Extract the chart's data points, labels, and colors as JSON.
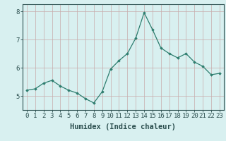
{
  "x": [
    0,
    1,
    2,
    3,
    4,
    5,
    6,
    7,
    8,
    9,
    10,
    11,
    12,
    13,
    14,
    15,
    16,
    17,
    18,
    19,
    20,
    21,
    22,
    23
  ],
  "y": [
    5.2,
    5.25,
    5.45,
    5.55,
    5.35,
    5.2,
    5.1,
    4.9,
    4.75,
    5.15,
    5.95,
    6.25,
    6.5,
    7.05,
    7.95,
    7.35,
    6.7,
    6.5,
    6.35,
    6.5,
    6.2,
    6.05,
    5.75,
    5.8
  ],
  "xlabel": "Humidex (Indice chaleur)",
  "ylim": [
    4.5,
    8.25
  ],
  "xlim": [
    -0.5,
    23.5
  ],
  "yticks": [
    5,
    6,
    7,
    8
  ],
  "xticks": [
    0,
    1,
    2,
    3,
    4,
    5,
    6,
    7,
    8,
    9,
    10,
    11,
    12,
    13,
    14,
    15,
    16,
    17,
    18,
    19,
    20,
    21,
    22,
    23
  ],
  "line_color": "#2d7d6e",
  "marker": "D",
  "marker_size": 1.8,
  "bg_color": "#d8f0f0",
  "grid_color": "#c8aaaa",
  "axis_color": "#2d5050",
  "xlabel_fontsize": 7.5,
  "tick_fontsize": 6.5
}
